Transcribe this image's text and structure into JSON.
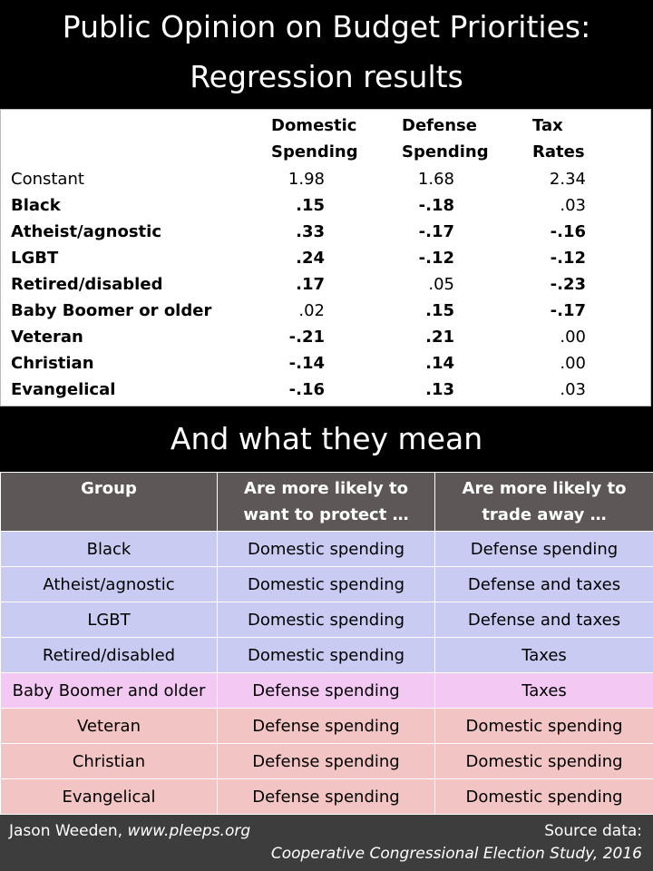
{
  "title": {
    "line1": "Public Opinion on Budget Priorities:",
    "line2": "Regression results"
  },
  "regression": {
    "headers": [
      {
        "line1": "Domestic",
        "line2": "Spending"
      },
      {
        "line1": "Defense",
        "line2": "Spending"
      },
      {
        "line1": "Tax",
        "line2": "Rates"
      }
    ],
    "rows": [
      {
        "label": "Constant",
        "values": [
          "1.98",
          "1.68",
          "2.34"
        ],
        "bold_label": false,
        "bold": [
          false,
          false,
          false
        ]
      },
      {
        "label": "Black",
        "values": [
          ".15",
          "-.18",
          ".03"
        ],
        "bold_label": true,
        "bold": [
          true,
          true,
          false
        ]
      },
      {
        "label": "Atheist/agnostic",
        "values": [
          ".33",
          "-.17",
          "-.16"
        ],
        "bold_label": true,
        "bold": [
          true,
          true,
          true
        ]
      },
      {
        "label": "LGBT",
        "values": [
          ".24",
          "-.12",
          "-.12"
        ],
        "bold_label": true,
        "bold": [
          true,
          true,
          true
        ]
      },
      {
        "label": "Retired/disabled",
        "values": [
          ".17",
          ".05",
          "-.23"
        ],
        "bold_label": true,
        "bold": [
          true,
          false,
          true
        ]
      },
      {
        "label": "Baby Boomer or older",
        "values": [
          ".02",
          ".15",
          "-.17"
        ],
        "bold_label": true,
        "bold": [
          false,
          true,
          true
        ]
      },
      {
        "label": "Veteran",
        "values": [
          "-.21",
          ".21",
          ".00"
        ],
        "bold_label": true,
        "bold": [
          true,
          true,
          false
        ]
      },
      {
        "label": "Christian",
        "values": [
          "-.14",
          ".14",
          ".00"
        ],
        "bold_label": true,
        "bold": [
          true,
          true,
          false
        ]
      },
      {
        "label": "Evangelical",
        "values": [
          "-.16",
          ".13",
          ".03"
        ],
        "bold_label": true,
        "bold": [
          true,
          true,
          false
        ]
      }
    ]
  },
  "meaning": {
    "title": "And what they mean",
    "headers": [
      {
        "line1": "Group",
        "line2": ""
      },
      {
        "line1": "Are more likely to",
        "line2": "want to protect …"
      },
      {
        "line1": "Are more likely to",
        "line2": "trade away …"
      }
    ],
    "rows": [
      {
        "group": "Black",
        "protect": "Domestic spending",
        "trade": "Defense spending",
        "color": "blue"
      },
      {
        "group": "Atheist/agnostic",
        "protect": "Domestic spending",
        "trade": "Defense and taxes",
        "color": "blue"
      },
      {
        "group": "LGBT",
        "protect": "Domestic spending",
        "trade": "Defense and taxes",
        "color": "blue"
      },
      {
        "group": "Retired/disabled",
        "protect": "Domestic spending",
        "trade": "Taxes",
        "color": "blue"
      },
      {
        "group": "Baby Boomer and older",
        "protect": "Defense spending",
        "trade": "Taxes",
        "color": "pink"
      },
      {
        "group": "Veteran",
        "protect": "Defense spending",
        "trade": "Domestic spending",
        "color": "red"
      },
      {
        "group": "Christian",
        "protect": "Defense spending",
        "trade": "Domestic spending",
        "color": "red"
      },
      {
        "group": "Evangelical",
        "protect": "Defense spending",
        "trade": "Domestic spending",
        "color": "red"
      }
    ]
  },
  "footer": {
    "author": "Jason Weeden, ",
    "website": "www.pleeps.org",
    "source_label": "Source data:",
    "source": "Cooperative Congressional Election Study, 2016"
  },
  "colors": {
    "blue": "#c9cbf2",
    "pink": "#f3c9f3",
    "red": "#f2c4c4",
    "header_gray": "#5e5757"
  }
}
